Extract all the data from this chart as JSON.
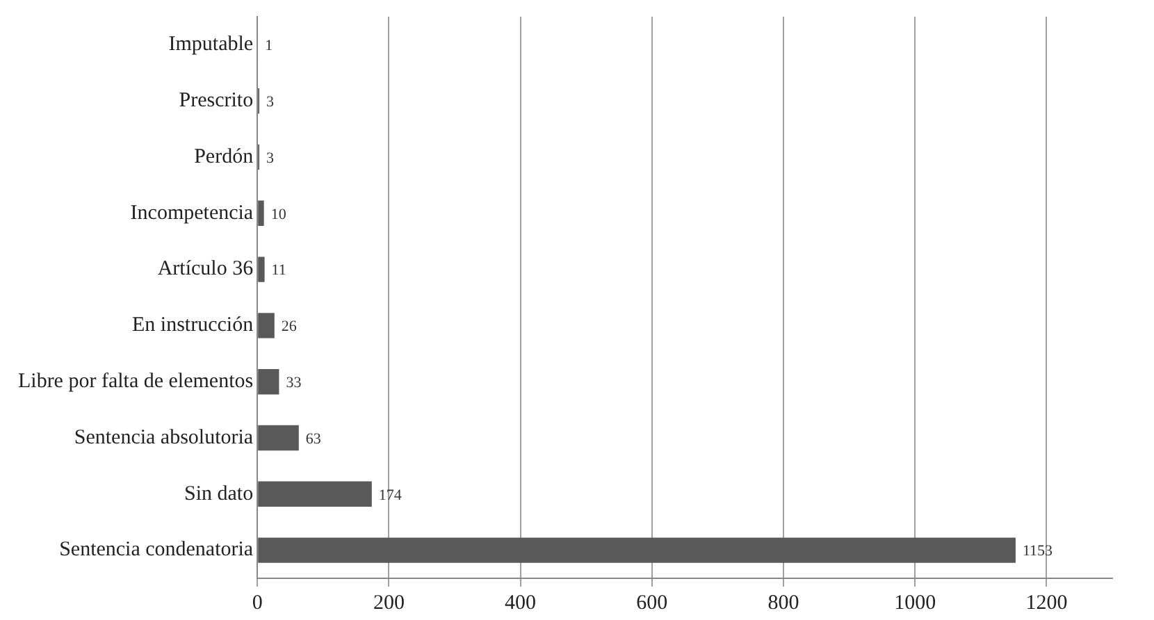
{
  "chart_data": {
    "type": "bar",
    "orientation": "horizontal",
    "categories": [
      "Imputable",
      "Prescrito",
      "Perdón",
      "Incompetencia",
      "Artículo 36",
      "En instrucción",
      "Libre por falta de elementos",
      "Sentencia absolutoria",
      "Sin dato",
      "Sentencia condenatoria"
    ],
    "values": [
      1,
      3,
      3,
      10,
      11,
      26,
      33,
      63,
      174,
      1153
    ],
    "color": "#595959",
    "xlim": [
      0,
      1300
    ],
    "xticks": [
      0,
      200,
      400,
      600,
      800,
      1000,
      1200
    ],
    "grid": "x",
    "data_labels": true,
    "legend": false
  }
}
